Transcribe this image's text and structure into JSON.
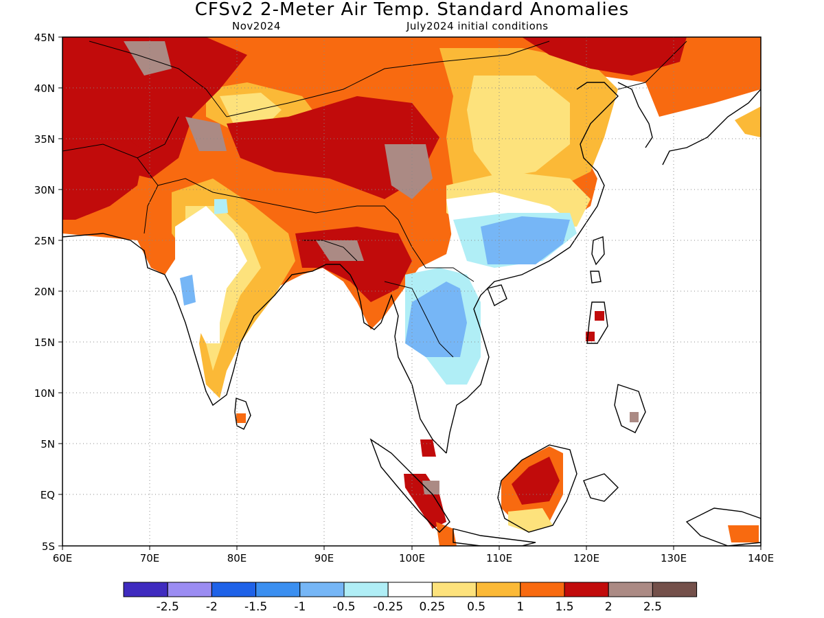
{
  "title": "CFSv2 2-Meter Air Temp. Standard Anomalies",
  "subtitle_left": "Nov2024",
  "subtitle_right": "July2024 initial conditions",
  "map": {
    "lon_range": [
      60,
      140
    ],
    "lat_range": [
      -5,
      45
    ],
    "x_ticks": [
      "60E",
      "70E",
      "80E",
      "90E",
      "100E",
      "110E",
      "120E",
      "130E",
      "140E"
    ],
    "y_ticks": [
      "45N",
      "40N",
      "35N",
      "30N",
      "25N",
      "20N",
      "15N",
      "10N",
      "5N",
      "EQ",
      "5S"
    ],
    "gridlines": "dotted"
  },
  "legend": {
    "colors": [
      "#3f2bbf",
      "#9b8cf2",
      "#1f62e8",
      "#3b8ff0",
      "#76b6f6",
      "#b0eef6",
      "#ffffff",
      "#fde27c",
      "#fbb937",
      "#f86a10",
      "#c10b0b",
      "#ab8a84",
      "#74504a"
    ],
    "labels": [
      "-2.5",
      "-2",
      "-1.5",
      "-1",
      "-0.5",
      "-0.25",
      "0.25",
      "0.5",
      "1",
      "1.5",
      "2",
      "2.5"
    ]
  },
  "regions": [
    {
      "name": "northwest-high-anomaly",
      "color": "#c10b0b",
      "lon": [
        60,
        78
      ],
      "lat": [
        30,
        45
      ]
    },
    {
      "name": "northern-orange-band",
      "color": "#f86a10",
      "lon": [
        82,
        132
      ],
      "lat": [
        36,
        45
      ]
    },
    {
      "name": "tibet-high-anomaly",
      "color": "#c10b0b",
      "lon": [
        80,
        97
      ],
      "lat": [
        29,
        36
      ]
    },
    {
      "name": "southeast-china-cool-anomaly",
      "color": "#76b6f6",
      "lon": [
        106,
        116
      ],
      "lat": [
        22,
        27
      ]
    },
    {
      "name": "indochina-cool-anomaly",
      "color": "#76b6f6",
      "lon": [
        99,
        106
      ],
      "lat": [
        13,
        20
      ]
    },
    {
      "name": "borneo-high-anomaly",
      "color": "#c10b0b",
      "lon": [
        111,
        117
      ],
      "lat": [
        0,
        4
      ]
    }
  ]
}
